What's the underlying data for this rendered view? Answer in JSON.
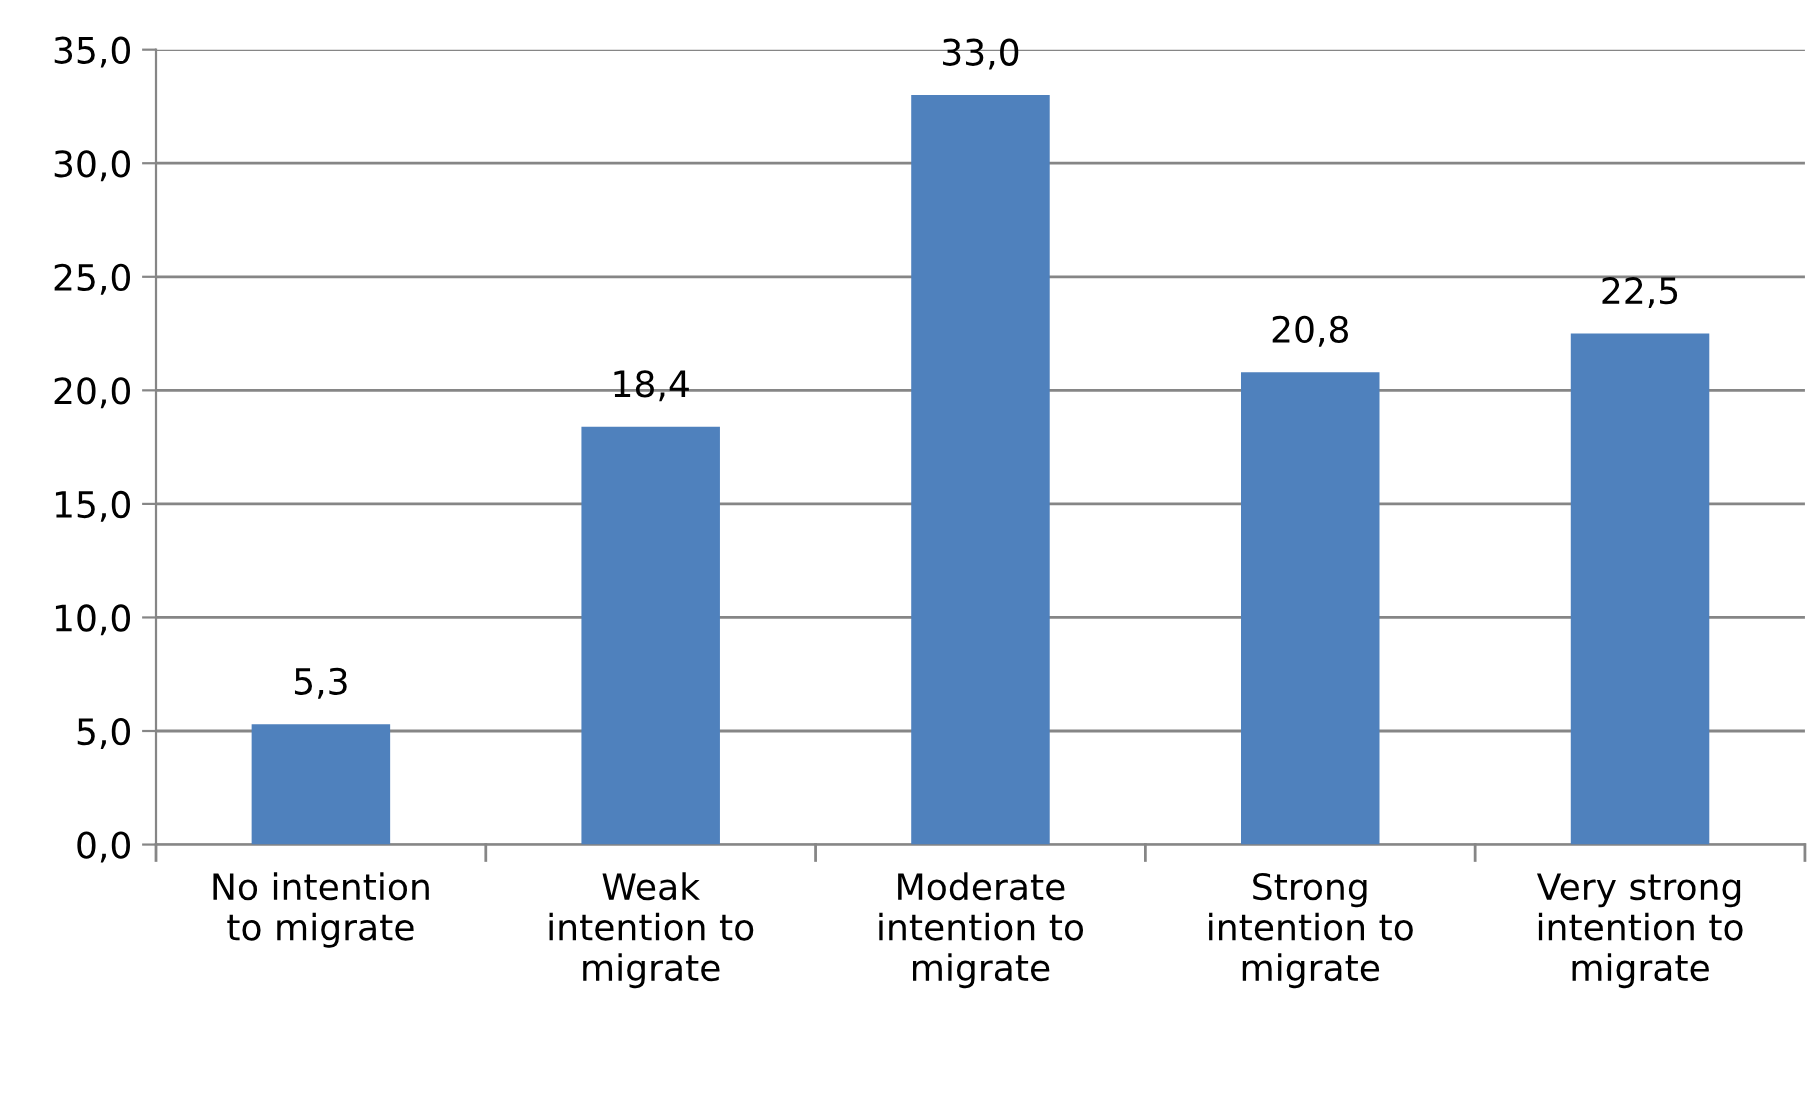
{
  "chart_data": {
    "type": "bar",
    "categories": [
      "No intention\nto migrate",
      "Weak\nintention to\nmigrate",
      "Moderate\nintention to\nmigrate",
      "Strong\nintention to\nmigrate",
      "Very strong\nintention to\nmigrate"
    ],
    "values": [
      5.3,
      18.4,
      33.0,
      20.8,
      22.5
    ],
    "value_labels": [
      "5,3",
      "18,4",
      "33,0",
      "20,8",
      "22,5"
    ],
    "color": "#4f81bd",
    "ylim": [
      0,
      35
    ],
    "yticks": [
      {
        "value": 0,
        "label": "0,0"
      },
      {
        "value": 5,
        "label": "5,0"
      },
      {
        "value": 10,
        "label": "10,0"
      },
      {
        "value": 15,
        "label": "15,0"
      },
      {
        "value": 20,
        "label": "20,0"
      },
      {
        "value": 25,
        "label": "25,0"
      },
      {
        "value": 30,
        "label": "30,0"
      },
      {
        "value": 35,
        "label": "35,0"
      }
    ],
    "grid": "y",
    "legend": false
  }
}
